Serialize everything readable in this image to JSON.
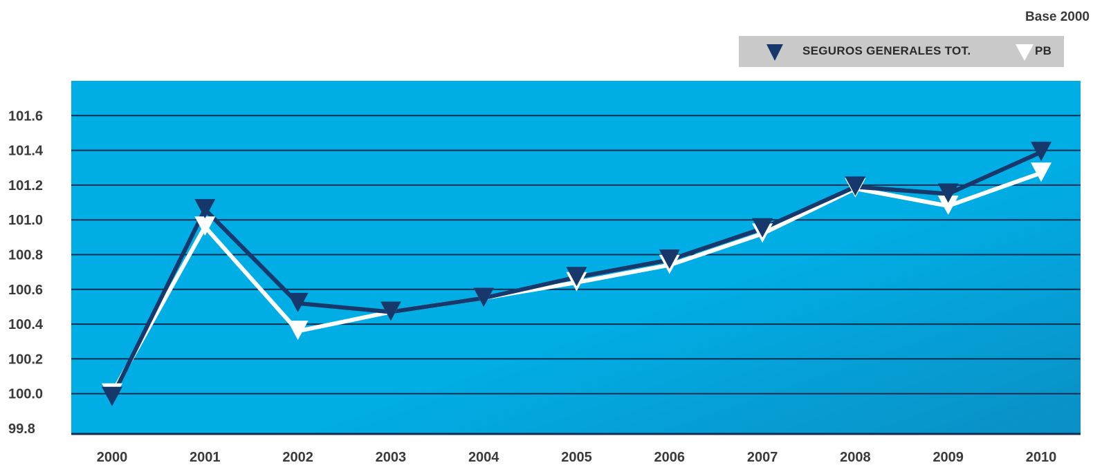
{
  "base_label": "Base 2000",
  "legend": [
    {
      "label": "SEGUROS GENERALES TOT.",
      "color": "#16386b"
    },
    {
      "label": "PB",
      "color": "#ffffff"
    }
  ],
  "chart_data": {
    "type": "line",
    "x": [
      "2000",
      "2001",
      "2002",
      "2003",
      "2004",
      "2005",
      "2006",
      "2007",
      "2008",
      "2009",
      "2010"
    ],
    "yticks": [
      "99.8",
      "100.0",
      "100.2",
      "100.4",
      "100.6",
      "100.8",
      "101.0",
      "101.2",
      "101.4",
      "101.6"
    ],
    "ylim": [
      99.8,
      101.8
    ],
    "grid": true,
    "background_color": "#00aee5",
    "series": [
      {
        "name": "SEGUROS GENERALES TOT.",
        "color": "#16386b",
        "values": [
          99.98,
          101.06,
          100.52,
          100.47,
          100.55,
          100.67,
          100.77,
          100.95,
          101.19,
          101.15,
          101.39
        ]
      },
      {
        "name": "PB",
        "color": "#ffffff",
        "values": [
          100.0,
          100.96,
          100.36,
          100.47,
          100.55,
          100.64,
          100.74,
          100.92,
          101.18,
          101.08,
          101.27
        ]
      }
    ]
  }
}
